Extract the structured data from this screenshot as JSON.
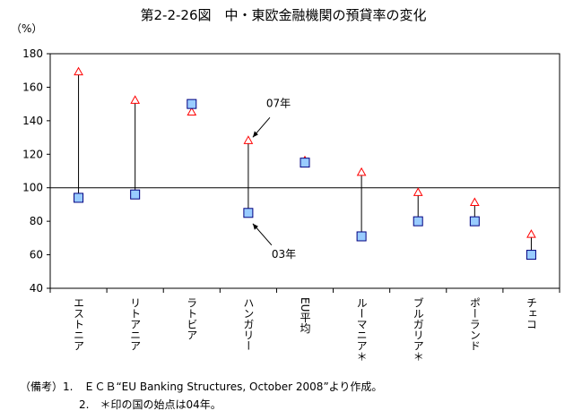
{
  "chart_data": {
    "type": "range-dot",
    "title": "第2-2-26図　中・東欧金融機関の預貸率の変化",
    "y_unit": "（%）",
    "categories": [
      "エストニア",
      "リトアニア",
      "ラトビア",
      "ハンガリー",
      "EU平均",
      "ルーマニア＊",
      "ブルガリア＊",
      "ポーランド",
      "チェコ"
    ],
    "series": [
      {
        "name": "03年",
        "color": "#99ccff",
        "values": [
          94,
          96,
          150,
          85,
          115,
          71,
          80,
          80,
          60
        ]
      },
      {
        "name": "07年",
        "color": "#ff0000",
        "values": [
          169,
          152,
          145,
          128,
          116,
          109,
          97,
          91,
          72
        ]
      }
    ],
    "ylim": [
      40,
      180
    ],
    "yticks": [
      40,
      60,
      80,
      100,
      120,
      140,
      160,
      180
    ],
    "reference_line": 100,
    "notes": [
      "（備考）1.　ＥＣＢ“EU Banking Structures, October 2008”より作成。",
      "2.　＊印の国の始点は04年。"
    ]
  }
}
